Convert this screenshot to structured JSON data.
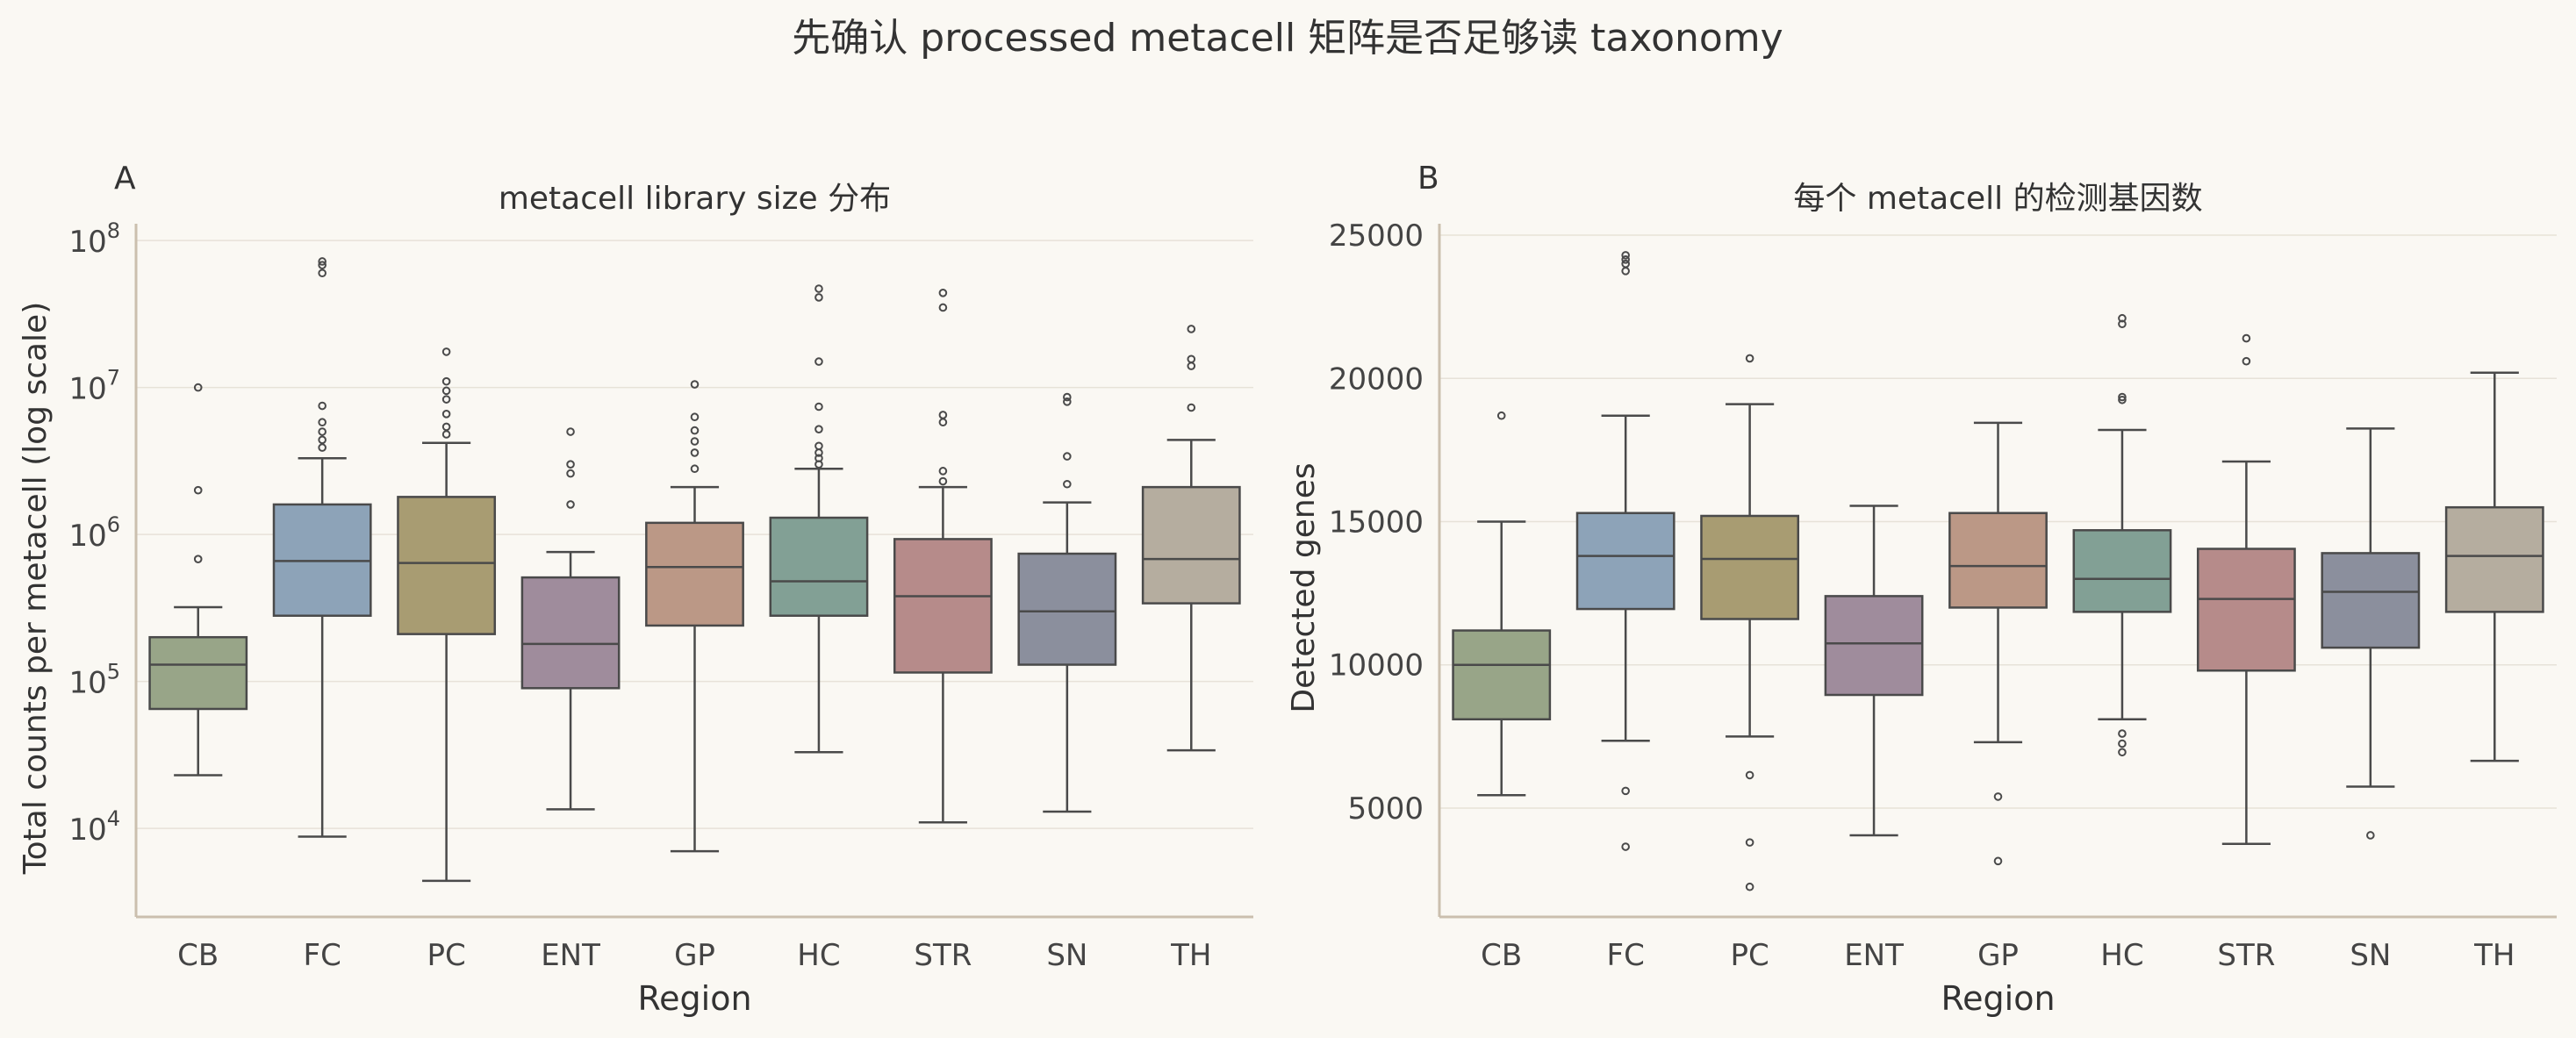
{
  "figure": {
    "suptitle": "先确认 processed metacell 矩阵是否足够读 taxonomy"
  },
  "colors": {
    "background": "#faf8f3",
    "grid": "#e7e2d8",
    "spine": "#cbbfae",
    "box_edge": "#4a4a4a",
    "CB": "#98a588",
    "FC": "#8da3b8",
    "PC": "#a89c72",
    "ENT": "#9f8c9c",
    "GP": "#bb9886",
    "HC": "#82a095",
    "STR": "#b68b8a",
    "SN": "#8b8f9d",
    "TH": "#b5ad9f"
  },
  "chart_data": [
    {
      "type": "box",
      "panel_label": "A",
      "title": "metacell library size 分布",
      "xlabel": "Region",
      "ylabel": "Total counts per metacell (log scale)",
      "yscale": "log",
      "ylim": [
        2500,
        130000000
      ],
      "yticks": [
        10000,
        100000,
        1000000,
        10000000,
        100000000
      ],
      "ytick_labels": [
        {
          "base": "10",
          "exp": "4"
        },
        {
          "base": "10",
          "exp": "5"
        },
        {
          "base": "10",
          "exp": "6"
        },
        {
          "base": "10",
          "exp": "7"
        },
        {
          "base": "10",
          "exp": "8"
        }
      ],
      "grid": "y",
      "categories": [
        "CB",
        "FC",
        "PC",
        "ENT",
        "GP",
        "HC",
        "STR",
        "SN",
        "TH"
      ],
      "boxes": [
        {
          "whislo": 23000,
          "q1": 65000,
          "med": 130000,
          "q3": 200000,
          "whishi": 320000,
          "fliers": [
            10000000,
            2000000,
            680000
          ]
        },
        {
          "whislo": 8800,
          "q1": 280000,
          "med": 660000,
          "q3": 1600000,
          "whishi": 3300000,
          "fliers": [
            72000000,
            68000000,
            60000000,
            7500000,
            5800000,
            5000000,
            4400000,
            3900000
          ]
        },
        {
          "whislo": 4400,
          "q1": 210000,
          "med": 640000,
          "q3": 1800000,
          "whishi": 4200000,
          "fliers": [
            17500000,
            11000000,
            9500000,
            8300000,
            6600000,
            5400000,
            4800000
          ]
        },
        {
          "whislo": 13500,
          "q1": 90000,
          "med": 180000,
          "q3": 510000,
          "whishi": 760000,
          "fliers": [
            5000000,
            3000000,
            2600000,
            1600000
          ]
        },
        {
          "whislo": 7000,
          "q1": 240000,
          "med": 600000,
          "q3": 1200000,
          "whishi": 2100000,
          "fliers": [
            10500000,
            6300000,
            5100000,
            4300000,
            3600000,
            2800000
          ]
        },
        {
          "whislo": 33000,
          "q1": 280000,
          "med": 480000,
          "q3": 1300000,
          "whishi": 2800000,
          "fliers": [
            47000000,
            41000000,
            15000000,
            7400000,
            5200000,
            4000000,
            3600000,
            3300000,
            3000000
          ]
        },
        {
          "whislo": 11000,
          "q1": 115000,
          "med": 380000,
          "q3": 930000,
          "whishi": 2100000,
          "fliers": [
            44000000,
            35000000,
            6500000,
            5800000,
            2700000,
            2300000
          ]
        },
        {
          "whislo": 13000,
          "q1": 130000,
          "med": 300000,
          "q3": 740000,
          "whishi": 1650000,
          "fliers": [
            8600000,
            8000000,
            3400000,
            2200000
          ]
        },
        {
          "whislo": 34000,
          "q1": 340000,
          "med": 680000,
          "q3": 2100000,
          "whishi": 4400000,
          "fliers": [
            25000000,
            15600000,
            14000000,
            7300000
          ]
        }
      ]
    },
    {
      "type": "box",
      "panel_label": "B",
      "title": "每个 metacell 的检测基因数",
      "xlabel": "Region",
      "ylabel": "Detected genes",
      "yscale": "linear",
      "ylim": [
        1200,
        25400
      ],
      "yticks": [
        5000,
        10000,
        15000,
        20000,
        25000
      ],
      "ytick_labels": [
        "5000",
        "10000",
        "15000",
        "20000",
        "25000"
      ],
      "grid": "y",
      "categories": [
        "CB",
        "FC",
        "PC",
        "ENT",
        "GP",
        "HC",
        "STR",
        "SN",
        "TH"
      ],
      "boxes": [
        {
          "whislo": 5450,
          "q1": 8100,
          "med": 10000,
          "q3": 11200,
          "whishi": 15000,
          "fliers": [
            18700
          ]
        },
        {
          "whislo": 7350,
          "q1": 11950,
          "med": 13800,
          "q3": 15300,
          "whishi": 18700,
          "fliers": [
            24300,
            24150,
            24000,
            23750,
            5600,
            3650
          ]
        },
        {
          "whislo": 7500,
          "q1": 11600,
          "med": 13700,
          "q3": 15200,
          "whishi": 19100,
          "fliers": [
            20700,
            6150,
            3800,
            2250
          ]
        },
        {
          "whislo": 4050,
          "q1": 8950,
          "med": 10750,
          "q3": 12400,
          "whishi": 15550,
          "fliers": []
        },
        {
          "whislo": 7300,
          "q1": 12000,
          "med": 13450,
          "q3": 15300,
          "whishi": 18450,
          "fliers": [
            5400,
            3150
          ]
        },
        {
          "whislo": 8100,
          "q1": 11850,
          "med": 13000,
          "q3": 14700,
          "whishi": 18200,
          "fliers": [
            22100,
            21900,
            19350,
            19250,
            7600,
            7250,
            6950
          ]
        },
        {
          "whislo": 3750,
          "q1": 9800,
          "med": 12300,
          "q3": 14050,
          "whishi": 17100,
          "fliers": [
            21400,
            20600
          ]
        },
        {
          "whislo": 5750,
          "q1": 10600,
          "med": 12550,
          "q3": 13900,
          "whishi": 18250,
          "fliers": [
            4050
          ]
        },
        {
          "whislo": 6650,
          "q1": 11850,
          "med": 13800,
          "q3": 15500,
          "whishi": 20200,
          "fliers": []
        }
      ]
    }
  ]
}
